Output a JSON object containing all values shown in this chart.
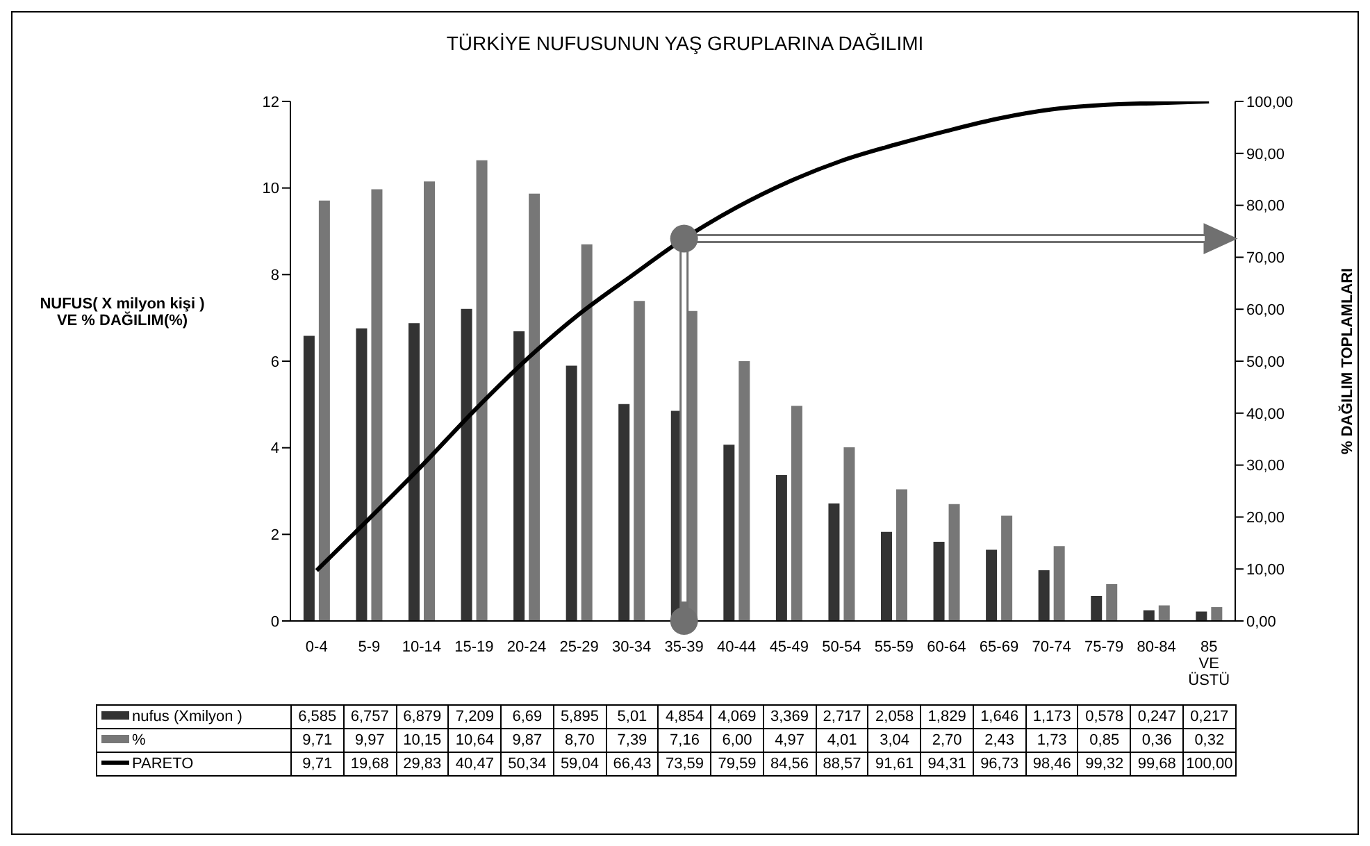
{
  "chart_data": {
    "type": "bar",
    "title": "TÜRKİYE NUFUSUNUN YAŞ GRUPLARINA DAĞILIMI",
    "ylabel": "NUFUS( X milyon kişi )\nVE  % DAĞILIM(%)",
    "y2label": "% DAĞILIM TOPLAMLARI",
    "categories": [
      "0-4",
      "5-9",
      "10-14",
      "15-19",
      "20-24",
      "25-29",
      "30-34",
      "35-39",
      "40-44",
      "45-49",
      "50-54",
      "55-59",
      "60-64",
      "65-69",
      "70-74",
      "75-79",
      "80-84",
      "85 VE ÜSTÜ"
    ],
    "series": [
      {
        "name": "nufus (Xmilyon )",
        "color": "#333333",
        "values": [
          6.585,
          6.757,
          6.879,
          7.209,
          6.69,
          5.895,
          5.01,
          4.854,
          4.069,
          3.369,
          2.717,
          2.058,
          1.829,
          1.646,
          1.173,
          0.578,
          0.247,
          0.217
        ],
        "value_labels": [
          "6,585",
          "6,757",
          "6,879",
          "7,209",
          "6,69",
          "5,895",
          "5,01",
          "4,854",
          "4,069",
          "3,369",
          "2,717",
          "2,058",
          "1,829",
          "1,646",
          "1,173",
          "0,578",
          "0,247",
          "0,217"
        ]
      },
      {
        "name": "%",
        "color": "#777777",
        "values": [
          9.71,
          9.97,
          10.15,
          10.64,
          9.87,
          8.7,
          7.39,
          7.16,
          6.0,
          4.97,
          4.01,
          3.04,
          2.7,
          2.43,
          1.73,
          0.85,
          0.36,
          0.32
        ],
        "value_labels": [
          "9,71",
          "9,97",
          "10,15",
          "10,64",
          "9,87",
          "8,70",
          "7,39",
          "7,16",
          "6,00",
          "4,97",
          "4,01",
          "3,04",
          "2,70",
          "2,43",
          "1,73",
          "0,85",
          "0,36",
          "0,32"
        ]
      },
      {
        "name": "PARETO",
        "type": "line",
        "axis": "y2",
        "color": "#000000",
        "values": [
          9.71,
          19.68,
          29.83,
          40.47,
          50.34,
          59.04,
          66.43,
          73.59,
          79.59,
          84.56,
          88.57,
          91.61,
          94.31,
          96.73,
          98.46,
          99.32,
          99.68,
          100.0
        ],
        "value_labels": [
          "9,71",
          "19,68",
          "29,83",
          "40,47",
          "50,34",
          "59,04",
          "66,43",
          "73,59",
          "79,59",
          "84,56",
          "88,57",
          "91,61",
          "94,31",
          "96,73",
          "98,46",
          "99,32",
          "99,68",
          "100,00"
        ]
      }
    ],
    "ylim": [
      0,
      12
    ],
    "yticks": [
      0,
      2,
      4,
      6,
      8,
      10,
      12
    ],
    "y2lim": [
      0,
      100
    ],
    "y2ticks": [
      {
        "value": 0,
        "label": "0,00"
      },
      {
        "value": 10,
        "label": "10,00"
      },
      {
        "value": 20,
        "label": "20,00"
      },
      {
        "value": 30,
        "label": "30,00"
      },
      {
        "value": 40,
        "label": "40,00"
      },
      {
        "value": 50,
        "label": "50,00"
      },
      {
        "value": 60,
        "label": "60,00"
      },
      {
        "value": 70,
        "label": "70,00"
      },
      {
        "value": 80,
        "label": "80,00"
      },
      {
        "value": 90,
        "label": "90,00"
      },
      {
        "value": 100,
        "label": "100,00"
      }
    ],
    "marker": "none",
    "line_style": "solid",
    "legend": "bottom"
  }
}
